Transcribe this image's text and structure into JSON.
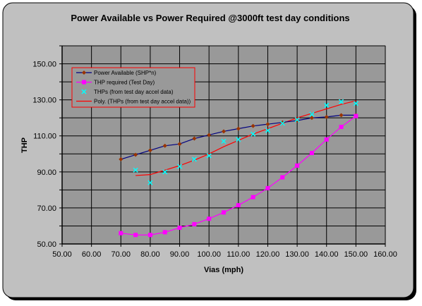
{
  "colors": {
    "outer_bg": "#c0c0c0",
    "plot_bg": "#999999",
    "grid": "#000000",
    "power_available": "#000080",
    "power_available_marker": "#993300",
    "thp_required": "#ff00ff",
    "thps_accel": "#00ffff",
    "poly": "#ff0000"
  },
  "chart_data": {
    "type": "line",
    "title": "Power Available vs Power Required @3000ft test day conditions",
    "xlabel": "Vias (mph)",
    "ylabel": "THP",
    "xlim": [
      50,
      160
    ],
    "ylim": [
      50,
      160
    ],
    "x_ticks": [
      "50.00",
      "60.00",
      "70.00",
      "80.00",
      "90.00",
      "100.00",
      "110.00",
      "120.00",
      "130.00",
      "140.00",
      "150.00",
      "160.00"
    ],
    "y_ticks": [
      "50.00",
      "70.00",
      "90.00",
      "110.00",
      "130.00",
      "150.00"
    ],
    "grid": true,
    "legend_position": "top-left",
    "series": [
      {
        "name": "Power Available (SHP*n)",
        "x": [
          70,
          75,
          80,
          85,
          90,
          95,
          100,
          105,
          110,
          115,
          120,
          125,
          130,
          135,
          140,
          145,
          150
        ],
        "y": [
          97,
          99.5,
          102,
          104.5,
          105.5,
          108.5,
          110.5,
          112.5,
          114,
          115.5,
          116.5,
          117.5,
          118.5,
          120,
          120.5,
          121.5,
          121.5
        ]
      },
      {
        "name": "THP required (Test Day)",
        "x": [
          70,
          75,
          80,
          85,
          90,
          95,
          100,
          105,
          110,
          115,
          120,
          125,
          130,
          135,
          140,
          145,
          150
        ],
        "y": [
          56,
          55,
          55,
          56.5,
          59,
          61,
          64,
          67.5,
          71.5,
          76,
          81,
          87,
          93.5,
          100.5,
          108,
          115,
          121
        ]
      },
      {
        "name": "THPs (from test day accel data)",
        "x": [
          75,
          80,
          85,
          90,
          95,
          100,
          105,
          110,
          115,
          120,
          125,
          130,
          135,
          140,
          145,
          150
        ],
        "y": [
          91,
          84,
          90,
          93,
          97,
          99,
          107,
          108,
          111,
          113,
          117,
          119,
          122,
          127,
          129,
          128
        ]
      },
      {
        "name": "Poly. (THPs (from test day accel data))",
        "x": [
          75,
          80,
          85,
          90,
          95,
          100,
          105,
          110,
          115,
          120,
          125,
          130,
          135,
          140,
          145,
          150
        ],
        "y": [
          88,
          88.5,
          91,
          93.5,
          96.5,
          100,
          104,
          107.5,
          111,
          114,
          117,
          120,
          122.5,
          125,
          127.5,
          129.5
        ]
      }
    ]
  }
}
